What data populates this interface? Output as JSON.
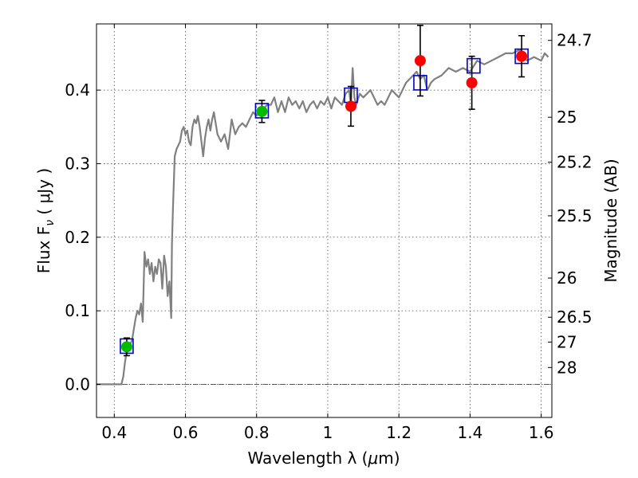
{
  "chart_data": {
    "type": "scatter",
    "title": "",
    "xlabel_prefix": "Wavelength  λ (",
    "xlabel_unit": "μ",
    "xlabel_suffix": "m)",
    "ylabel_left": "Flux  F",
    "ylabel_left_sub": "ν",
    "ylabel_left_unit": " ( μJy )",
    "ylabel_right": "Magnitude (AB)",
    "xlim": [
      0.35,
      1.63
    ],
    "ylim": [
      -0.045,
      0.49
    ],
    "x_ticks": [
      0.4,
      0.6,
      0.8,
      1.0,
      1.2,
      1.4,
      1.6
    ],
    "x_tick_labels": [
      "0.4",
      "0.6",
      "0.8",
      "1",
      "1.2",
      "1.4",
      "1.6"
    ],
    "y_ticks": [
      0.0,
      0.1,
      0.2,
      0.3,
      0.4
    ],
    "y_tick_labels": [
      "0.0",
      "0.1",
      "0.2",
      "0.3",
      "0.4"
    ],
    "right_ticks": [
      {
        "flux": 0.4676,
        "label": "24.7"
      },
      {
        "flux": 0.3631,
        "label": "25"
      },
      {
        "flux": 0.302,
        "label": "25.2"
      },
      {
        "flux": 0.2291,
        "label": "25.5"
      },
      {
        "flux": 0.1445,
        "label": "26"
      },
      {
        "flux": 0.0912,
        "label": "26.5"
      },
      {
        "flux": 0.0575,
        "label": "27"
      },
      {
        "flux": 0.0229,
        "label": "28"
      }
    ],
    "grid": true,
    "zero_line": 0.0,
    "template_sed": {
      "color": "#808080",
      "x": [
        0.35,
        0.42,
        0.425,
        0.43,
        0.435,
        0.44,
        0.445,
        0.45,
        0.455,
        0.46,
        0.465,
        0.47,
        0.475,
        0.48,
        0.485,
        0.49,
        0.495,
        0.5,
        0.505,
        0.51,
        0.515,
        0.52,
        0.525,
        0.53,
        0.535,
        0.54,
        0.545,
        0.55,
        0.555,
        0.56,
        0.562,
        0.565,
        0.57,
        0.575,
        0.58,
        0.585,
        0.59,
        0.595,
        0.6,
        0.605,
        0.61,
        0.615,
        0.62,
        0.625,
        0.63,
        0.635,
        0.64,
        0.645,
        0.65,
        0.655,
        0.66,
        0.665,
        0.67,
        0.675,
        0.68,
        0.685,
        0.69,
        0.7,
        0.71,
        0.72,
        0.73,
        0.74,
        0.75,
        0.76,
        0.77,
        0.78,
        0.79,
        0.8,
        0.81,
        0.82,
        0.83,
        0.84,
        0.85,
        0.86,
        0.87,
        0.88,
        0.89,
        0.9,
        0.91,
        0.92,
        0.93,
        0.94,
        0.95,
        0.96,
        0.97,
        0.98,
        0.99,
        1.0,
        1.01,
        1.02,
        1.03,
        1.04,
        1.05,
        1.06,
        1.065,
        1.07,
        1.075,
        1.08,
        1.09,
        1.1,
        1.12,
        1.14,
        1.15,
        1.16,
        1.18,
        1.2,
        1.22,
        1.24,
        1.25,
        1.26,
        1.27,
        1.28,
        1.29,
        1.3,
        1.32,
        1.34,
        1.36,
        1.38,
        1.4,
        1.42,
        1.44,
        1.46,
        1.48,
        1.5,
        1.52,
        1.54,
        1.56,
        1.58,
        1.6,
        1.61,
        1.62
      ],
      "y": [
        0.0,
        0.0,
        0.01,
        0.03,
        0.045,
        0.05,
        0.055,
        0.06,
        0.075,
        0.09,
        0.1,
        0.095,
        0.11,
        0.085,
        0.18,
        0.16,
        0.17,
        0.15,
        0.165,
        0.14,
        0.16,
        0.15,
        0.17,
        0.165,
        0.13,
        0.175,
        0.16,
        0.12,
        0.14,
        0.09,
        0.19,
        0.24,
        0.31,
        0.32,
        0.325,
        0.33,
        0.345,
        0.35,
        0.34,
        0.345,
        0.33,
        0.325,
        0.35,
        0.36,
        0.355,
        0.365,
        0.35,
        0.33,
        0.31,
        0.335,
        0.35,
        0.36,
        0.345,
        0.36,
        0.37,
        0.355,
        0.34,
        0.33,
        0.34,
        0.32,
        0.36,
        0.34,
        0.35,
        0.355,
        0.35,
        0.36,
        0.37,
        0.365,
        0.37,
        0.375,
        0.38,
        0.38,
        0.39,
        0.37,
        0.385,
        0.37,
        0.39,
        0.38,
        0.385,
        0.375,
        0.385,
        0.37,
        0.38,
        0.385,
        0.375,
        0.385,
        0.38,
        0.39,
        0.375,
        0.39,
        0.385,
        0.38,
        0.395,
        0.4,
        0.38,
        0.43,
        0.39,
        0.38,
        0.395,
        0.39,
        0.4,
        0.38,
        0.385,
        0.38,
        0.4,
        0.39,
        0.41,
        0.42,
        0.425,
        0.415,
        0.42,
        0.4,
        0.41,
        0.415,
        0.42,
        0.43,
        0.425,
        0.43,
        0.425,
        0.44,
        0.435,
        0.44,
        0.445,
        0.45,
        0.45,
        0.455,
        0.44,
        0.445,
        0.44,
        0.45,
        0.445
      ]
    },
    "model_boxes": {
      "color": "#0000cc",
      "x": [
        0.435,
        0.815,
        1.065,
        1.26,
        1.41,
        1.545
      ],
      "y": [
        0.052,
        0.372,
        0.393,
        0.41,
        0.433,
        0.446
      ]
    },
    "obs_green": {
      "color": "#00bb00",
      "x": [
        0.435,
        0.815
      ],
      "y": [
        0.051,
        0.371
      ],
      "err": [
        0.012,
        0.015
      ]
    },
    "obs_red": {
      "color": "#ff0000",
      "x": [
        1.065,
        1.26,
        1.405,
        1.545
      ],
      "y": [
        0.378,
        0.44,
        0.41,
        0.446
      ],
      "err": [
        0.027,
        0.048,
        0.036,
        0.028
      ]
    }
  }
}
